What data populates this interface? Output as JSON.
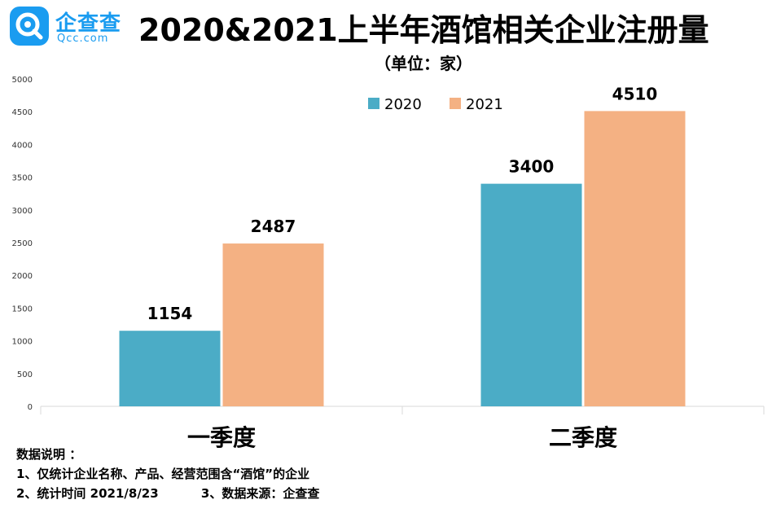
{
  "logo": {
    "name": "企查查",
    "domain": "Qcc.com"
  },
  "chart_data": {
    "type": "bar",
    "title": "2020&2021上半年酒馆相关企业注册量",
    "subtitle": "（单位：家）",
    "categories": [
      "一季度",
      "二季度"
    ],
    "series": [
      {
        "name": "2020",
        "color": "#4bacc6",
        "values": [
          1154,
          3400
        ]
      },
      {
        "name": "2021",
        "color": "#f4b183",
        "values": [
          2487,
          4510
        ]
      }
    ],
    "ylim": [
      0,
      5000
    ],
    "yticks": [
      0,
      500,
      1000,
      1500,
      2000,
      2500,
      3000,
      3500,
      4000,
      4500,
      5000
    ],
    "legend": "top-right",
    "grid": false
  },
  "notes": {
    "heading": "数据说明 ：",
    "line1": "1、仅统计企业名称、产品、经营范围含“酒馆”的企业",
    "line2a": "2、统计时间 2021/8/23",
    "line2b": "3、数据来源：企查查"
  }
}
